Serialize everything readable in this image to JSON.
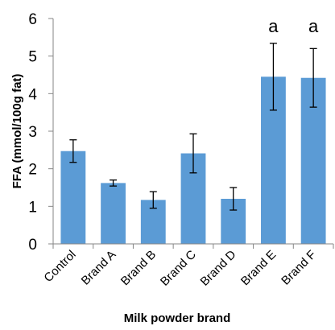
{
  "chart_data": {
    "type": "bar",
    "categories": [
      "Control",
      "Brand A",
      "Brand B",
      "Brand C",
      "Brand D",
      "Brand E",
      "Brand F"
    ],
    "values": [
      2.47,
      1.62,
      1.17,
      2.41,
      1.2,
      4.45,
      4.42
    ],
    "error": [
      0.3,
      0.08,
      0.22,
      0.52,
      0.3,
      0.89,
      0.78
    ],
    "annotations": [
      "",
      "",
      "",
      "",
      "",
      "a",
      "a"
    ],
    "xlabel": "Milk powder brand",
    "ylabel": "FFA (mmol/100g fat)",
    "ylim": [
      0,
      6
    ],
    "yticks": [
      0,
      1,
      2,
      3,
      4,
      5,
      6
    ],
    "grid": false,
    "bar_color": "#5b9bd5",
    "error_bar_color": "#000000",
    "axis_color": "#868686"
  }
}
